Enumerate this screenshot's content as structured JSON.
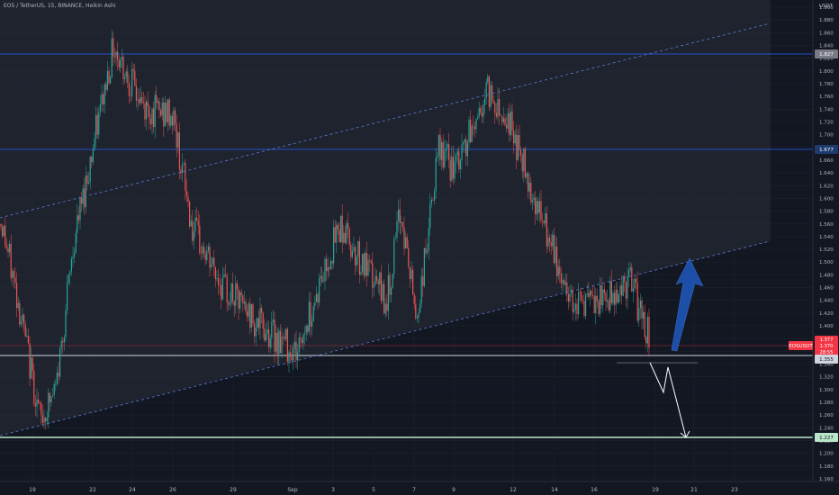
{
  "header": {
    "title": "EOS / TetherUS, 15, BINANCE, Heikin Ashi"
  },
  "axis": {
    "currency": "USDT",
    "y_ticks": [
      "1.900",
      "1.880",
      "1.860",
      "1.840",
      "1.820",
      "1.800",
      "1.780",
      "1.760",
      "1.740",
      "1.720",
      "1.700",
      "1.680",
      "1.660",
      "1.640",
      "1.620",
      "1.600",
      "1.580",
      "1.560",
      "1.540",
      "1.520",
      "1.500",
      "1.480",
      "1.460",
      "1.440",
      "1.420",
      "1.400",
      "1.380",
      "1.360",
      "1.340",
      "1.320",
      "1.300",
      "1.280",
      "1.260",
      "1.240",
      "1.220",
      "1.200",
      "1.180",
      "1.160"
    ],
    "x_ticks": [
      "19",
      "22",
      "24",
      "26",
      "29",
      "Sep",
      "3",
      "5",
      "7",
      "9",
      "12",
      "14",
      "16",
      "19",
      "21",
      "23"
    ]
  },
  "price_badges": {
    "level_high": "1.827",
    "level_mid": "1.677",
    "symbol_tag": "EOSUSDT",
    "last_price": "1.377",
    "last_price_2": "1.370",
    "countdown": "28:55",
    "support": "1.355",
    "target": "1.227"
  },
  "colors": {
    "background": "#131722",
    "bull": "#26a69a",
    "bear": "#ef5350",
    "grid": "#1e222d",
    "text": "#b2b5be",
    "channel_fill": "#2a2e39",
    "dashed_line": "#5b7bd5",
    "level_line": "#2962ff",
    "support_line": "#d1d4dc",
    "target_line": "#b9e6c9",
    "arrow_up": "#1e4fa8",
    "arrow_down": "#ffffff",
    "price_badge": "#f23645"
  },
  "chart_data": {
    "type": "candlestick",
    "title": "EOS / TetherUS, 15, BINANCE, Heikin Ashi",
    "symbol": "EOS / TetherUS",
    "interval": "15",
    "exchange": "BINANCE",
    "style": "Heikin Ashi",
    "y_range": [
      1.16,
      1.91
    ],
    "x_labels": [
      "19",
      "22",
      "24",
      "26",
      "29",
      "Sep",
      "3",
      "5",
      "7",
      "9",
      "12",
      "14",
      "16",
      "19",
      "21",
      "23"
    ],
    "close_path": [
      {
        "x": "19",
        "y": 1.56
      },
      {
        "x": "19",
        "y": 1.44
      },
      {
        "x": "19",
        "y": 1.25
      },
      {
        "x": "19",
        "y": 1.3
      },
      {
        "x": "22",
        "y": 1.53
      },
      {
        "x": "24",
        "y": 1.84
      },
      {
        "x": "24",
        "y": 1.74
      },
      {
        "x": "26",
        "y": 1.73
      },
      {
        "x": "26",
        "y": 1.55
      },
      {
        "x": "29",
        "y": 1.46
      },
      {
        "x": "29",
        "y": 1.4
      },
      {
        "x": "Sep",
        "y": 1.36
      },
      {
        "x": "3",
        "y": 1.56
      },
      {
        "x": "3",
        "y": 1.48
      },
      {
        "x": "5",
        "y": 1.44
      },
      {
        "x": "7",
        "y": 1.58
      },
      {
        "x": "7",
        "y": 1.41
      },
      {
        "x": "9",
        "y": 1.68
      },
      {
        "x": "9",
        "y": 1.64
      },
      {
        "x": "12",
        "y": 1.77
      },
      {
        "x": "12",
        "y": 1.72
      },
      {
        "x": "14",
        "y": 1.54
      },
      {
        "x": "14",
        "y": 1.45
      },
      {
        "x": "16",
        "y": 1.43
      },
      {
        "x": "16",
        "y": 1.47
      },
      {
        "x": "19",
        "y": 1.377
      }
    ],
    "horizontal_levels": [
      1.827,
      1.677,
      1.377,
      1.355,
      1.227
    ],
    "annotations": [
      {
        "type": "ascending-channel-support"
      },
      {
        "type": "ascending-channel-resistance"
      },
      {
        "type": "arrow-up"
      },
      {
        "type": "projected-drop",
        "target": 1.227
      }
    ]
  }
}
